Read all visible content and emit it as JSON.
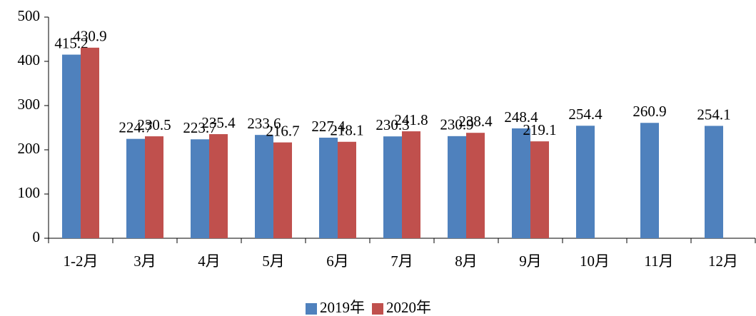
{
  "chart_data": {
    "type": "bar",
    "categories": [
      "1-2月",
      "3月",
      "4月",
      "5月",
      "6月",
      "7月",
      "8月",
      "9月",
      "10月",
      "11月",
      "12月"
    ],
    "series": [
      {
        "name": "2019年",
        "color": "#4f81bd",
        "values": [
          415.2,
          224.7,
          223.7,
          233.6,
          227.4,
          230.3,
          230.9,
          248.4,
          254.4,
          260.9,
          254.1
        ]
      },
      {
        "name": "2020年",
        "color": "#c0504d",
        "values": [
          430.9,
          230.5,
          235.4,
          216.7,
          218.1,
          241.8,
          238.4,
          219.1,
          null,
          null,
          null
        ]
      }
    ],
    "ylim": [
      0,
      500
    ],
    "yticks": [
      0,
      100,
      200,
      300,
      400,
      500
    ],
    "grid": false,
    "legend": "bottom"
  }
}
